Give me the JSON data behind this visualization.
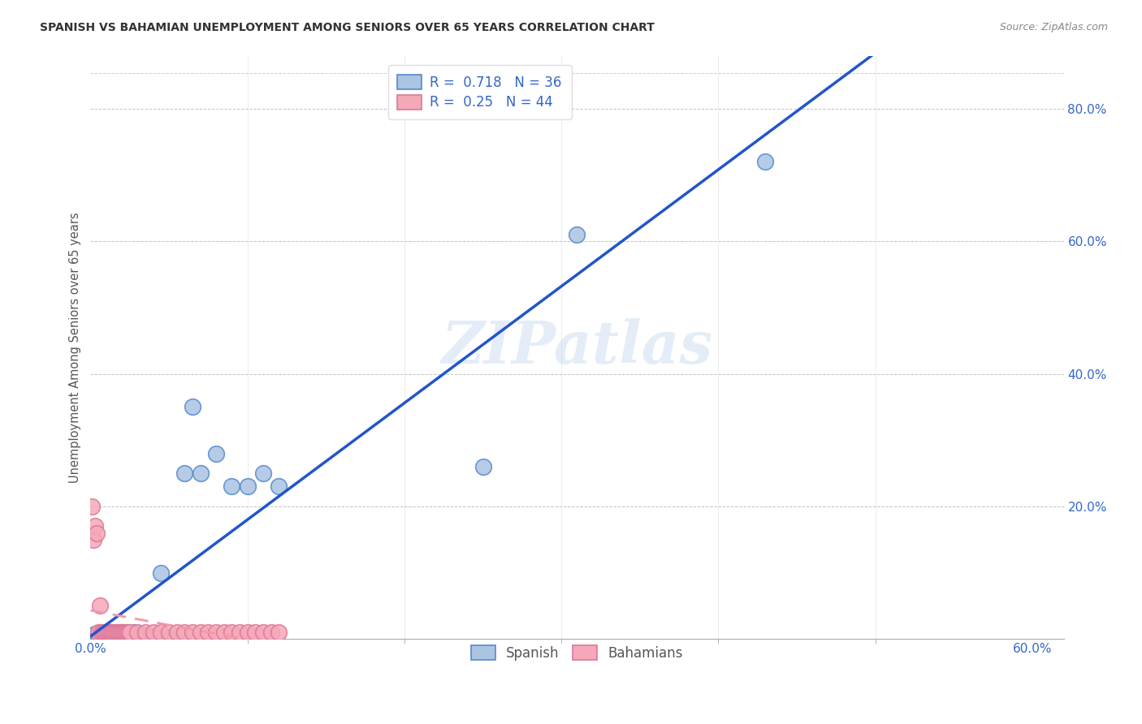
{
  "title": "SPANISH VS BAHAMIAN UNEMPLOYMENT AMONG SENIORS OVER 65 YEARS CORRELATION CHART",
  "source": "Source: ZipAtlas.com",
  "ylabel": "Unemployment Among Seniors over 65 years",
  "xlim": [
    0.0,
    0.62
  ],
  "ylim": [
    0.0,
    0.88
  ],
  "xtick_positions": [
    0.0,
    0.6
  ],
  "xtick_labels": [
    "0.0%",
    "60.0%"
  ],
  "ytick_positions": [
    0.0,
    0.2,
    0.4,
    0.6,
    0.8
  ],
  "ytick_labels": [
    "",
    "20.0%",
    "40.0%",
    "60.0%",
    "80.0%"
  ],
  "grid_yticks": [
    0.2,
    0.4,
    0.6,
    0.8
  ],
  "spanish_R": 0.718,
  "spanish_N": 36,
  "bahamian_R": 0.25,
  "bahamian_N": 44,
  "spanish_color": "#aac4e2",
  "bahamian_color": "#f5a8b8",
  "spanish_edge_color": "#5588cc",
  "bahamian_edge_color": "#dd7799",
  "spanish_line_color": "#2255cc",
  "bahamian_line_color": "#ee99aa",
  "watermark": "ZIPatlas",
  "spanish_x": [
    0.002,
    0.003,
    0.004,
    0.005,
    0.006,
    0.007,
    0.008,
    0.009,
    0.01,
    0.011,
    0.012,
    0.013,
    0.014,
    0.015,
    0.016,
    0.018,
    0.02,
    0.022,
    0.025,
    0.028,
    0.03,
    0.035,
    0.04,
    0.045,
    0.05,
    0.06,
    0.065,
    0.07,
    0.08,
    0.09,
    0.1,
    0.11,
    0.12,
    0.25,
    0.31,
    0.43
  ],
  "spanish_y": [
    0.005,
    0.008,
    0.003,
    0.005,
    0.007,
    0.003,
    0.005,
    0.003,
    0.005,
    0.003,
    0.01,
    0.008,
    0.003,
    0.005,
    0.003,
    0.008,
    0.01,
    0.005,
    0.008,
    0.01,
    0.005,
    0.005,
    0.003,
    0.1,
    0.003,
    0.25,
    0.35,
    0.25,
    0.28,
    0.23,
    0.23,
    0.25,
    0.23,
    0.26,
    0.61,
    0.72
  ],
  "bahamian_x": [
    0.001,
    0.002,
    0.003,
    0.004,
    0.005,
    0.006,
    0.007,
    0.008,
    0.009,
    0.01,
    0.011,
    0.012,
    0.013,
    0.014,
    0.015,
    0.016,
    0.017,
    0.018,
    0.019,
    0.02,
    0.021,
    0.022,
    0.023,
    0.024,
    0.025,
    0.03,
    0.035,
    0.04,
    0.045,
    0.05,
    0.055,
    0.06,
    0.065,
    0.07,
    0.075,
    0.08,
    0.085,
    0.09,
    0.095,
    0.1,
    0.105,
    0.11,
    0.115,
    0.12
  ],
  "bahamian_y": [
    0.2,
    0.15,
    0.17,
    0.16,
    0.01,
    0.05,
    0.01,
    0.01,
    0.01,
    0.01,
    0.01,
    0.01,
    0.01,
    0.01,
    0.01,
    0.01,
    0.01,
    0.01,
    0.01,
    0.01,
    0.01,
    0.01,
    0.01,
    0.01,
    0.01,
    0.01,
    0.01,
    0.01,
    0.01,
    0.01,
    0.01,
    0.01,
    0.01,
    0.01,
    0.01,
    0.01,
    0.01,
    0.01,
    0.01,
    0.01,
    0.01,
    0.01,
    0.01,
    0.01
  ]
}
